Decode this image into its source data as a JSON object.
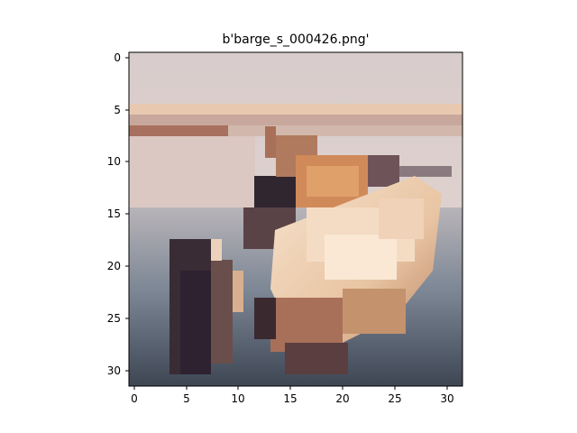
{
  "figure": {
    "title": "b'barge_s_000426.png'",
    "subject": "low-resolution pixelated photo of a white and orange boat on grey-blue water with a pale sky and horizon band",
    "x_ticks": [
      "0",
      "5",
      "10",
      "15",
      "20",
      "25",
      "30"
    ],
    "y_ticks": [
      "0",
      "5",
      "10",
      "15",
      "20",
      "25",
      "30"
    ],
    "palette": {
      "sky": "#d9cfcf",
      "horizon_band": "#b9826f",
      "hull_light": "#f0d8c0",
      "hull_orange": "#d08a5a",
      "shadow": "#3a2a30",
      "water": "#5f6f80",
      "water_dark": "#3f4a58"
    }
  }
}
